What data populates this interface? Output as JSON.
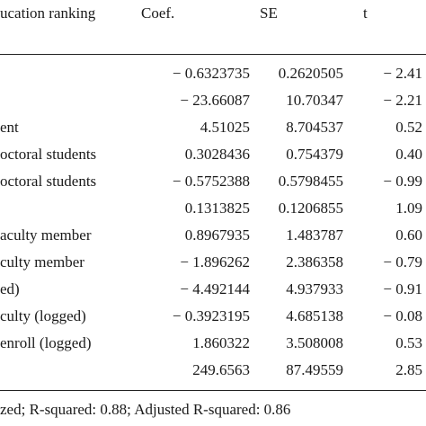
{
  "header": {
    "variable": "ucation ranking",
    "coef": "Coef.",
    "se": "SE",
    "t": "t"
  },
  "rows": [
    {
      "label": "",
      "coef": "− 0.6323735",
      "se": "0.2620505",
      "t": "− 2.41"
    },
    {
      "label": "",
      "coef": "− 23.66087",
      "se": "10.70347",
      "t": "− 2.21"
    },
    {
      "label": "ent",
      "coef": "4.51025",
      "se": "8.704537",
      "t": "0.52"
    },
    {
      "label": "octoral students",
      "coef": "0.3028436",
      "se": "0.754379",
      "t": "0.40"
    },
    {
      "label": "octoral students",
      "coef": "− 0.5752388",
      "se": "0.5798455",
      "t": "− 0.99"
    },
    {
      "label": "",
      "coef": "0.1313825",
      "se": "0.1206855",
      "t": "1.09"
    },
    {
      "label": "aculty member",
      "coef": "0.8967935",
      "se": "1.483787",
      "t": "0.60"
    },
    {
      "label": "culty member",
      "coef": "− 1.896262",
      "se": "2.386358",
      "t": "− 0.79"
    },
    {
      "label": "ed)",
      "coef": "− 4.492144",
      "se": "4.937933",
      "t": "− 0.91"
    },
    {
      "label": "culty (logged)",
      "coef": "− 0.3923195",
      "se": "4.685138",
      "t": "− 0.08"
    },
    {
      "label": "enroll (logged)",
      "coef": "1.860322",
      "se": "3.508008",
      "t": "0.53"
    },
    {
      "label": "",
      "coef": "249.6563",
      "se": "87.49559",
      "t": "2.85"
    }
  ],
  "footer": {
    "note": "zed; R-squared: 0.88; Adjusted R-squared: 0.86"
  }
}
